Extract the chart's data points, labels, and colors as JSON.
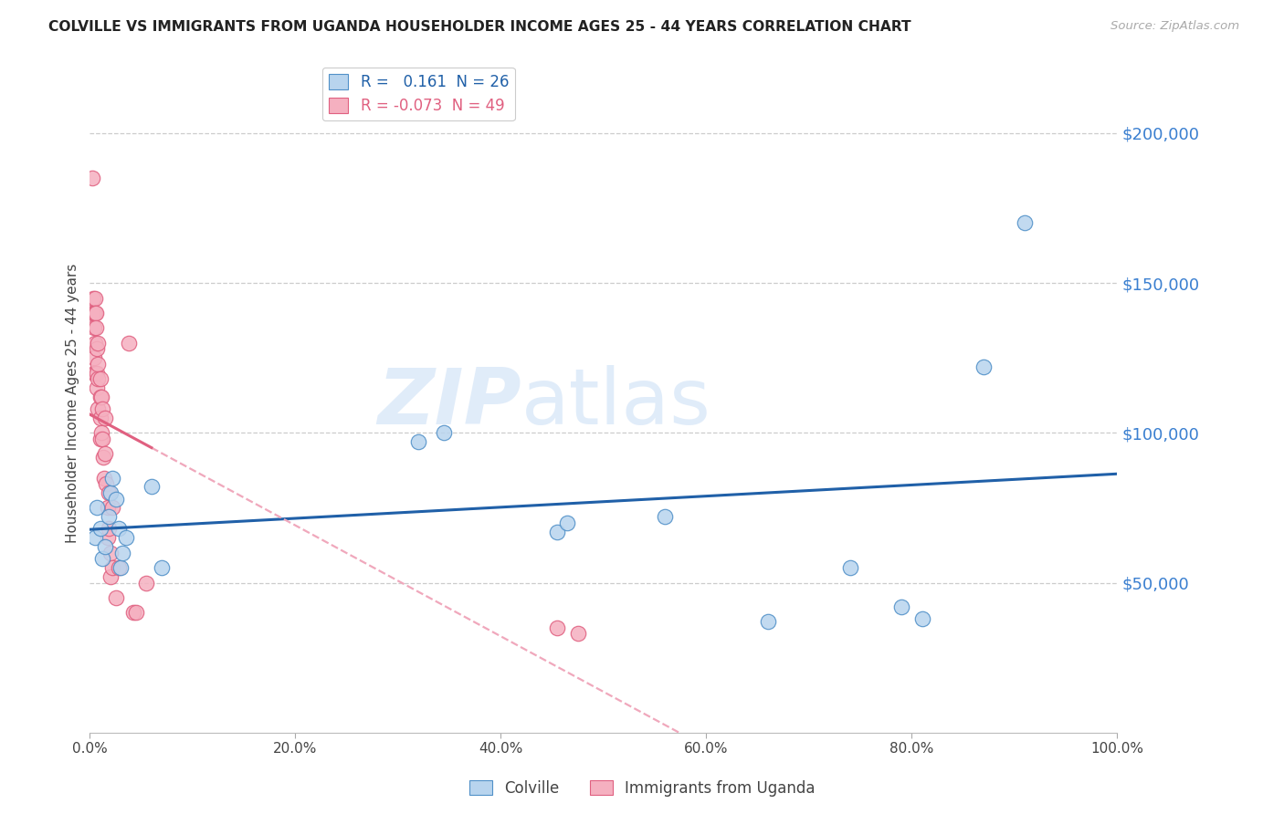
{
  "title": "COLVILLE VS IMMIGRANTS FROM UGANDA HOUSEHOLDER INCOME AGES 25 - 44 YEARS CORRELATION CHART",
  "source": "Source: ZipAtlas.com",
  "ylabel": "Householder Income Ages 25 - 44 years",
  "legend_colville": "Colville",
  "legend_uganda": "Immigrants from Uganda",
  "r_colville": "0.161",
  "n_colville": "26",
  "r_uganda": "-0.073",
  "n_uganda": "49",
  "colville_fill": "#b8d4ee",
  "colville_edge": "#5090c8",
  "uganda_fill": "#f5b0c0",
  "uganda_edge": "#e06080",
  "colville_line_color": "#2060a8",
  "uganda_solid_color": "#e06080",
  "uganda_dash_color": "#f0a8bc",
  "ytick_color": "#3a7fd0",
  "watermark_color": "#c8ddf5",
  "ylim": [
    0,
    220000
  ],
  "xlim": [
    0.0,
    1.0
  ],
  "yticks": [
    0,
    50000,
    100000,
    150000,
    200000
  ],
  "xticks": [
    0.0,
    0.2,
    0.4,
    0.6,
    0.8,
    1.0
  ],
  "colville_x": [
    0.005,
    0.007,
    0.01,
    0.012,
    0.015,
    0.018,
    0.02,
    0.022,
    0.025,
    0.028,
    0.03,
    0.032,
    0.035,
    0.06,
    0.07,
    0.32,
    0.345,
    0.455,
    0.465,
    0.56,
    0.66,
    0.74,
    0.79,
    0.81,
    0.87,
    0.91
  ],
  "colville_y": [
    65000,
    75000,
    68000,
    58000,
    62000,
    72000,
    80000,
    85000,
    78000,
    68000,
    55000,
    60000,
    65000,
    82000,
    55000,
    97000,
    100000,
    67000,
    70000,
    72000,
    37000,
    55000,
    42000,
    38000,
    122000,
    170000
  ],
  "uganda_x": [
    0.002,
    0.002,
    0.003,
    0.004,
    0.004,
    0.004,
    0.004,
    0.005,
    0.005,
    0.005,
    0.005,
    0.006,
    0.006,
    0.007,
    0.007,
    0.007,
    0.008,
    0.008,
    0.008,
    0.008,
    0.01,
    0.01,
    0.01,
    0.01,
    0.011,
    0.011,
    0.012,
    0.012,
    0.013,
    0.014,
    0.015,
    0.015,
    0.016,
    0.017,
    0.017,
    0.018,
    0.018,
    0.02,
    0.02,
    0.022,
    0.022,
    0.025,
    0.028,
    0.038,
    0.042,
    0.045,
    0.055,
    0.455,
    0.475
  ],
  "uganda_y": [
    185000,
    140000,
    145000,
    140000,
    135000,
    125000,
    120000,
    145000,
    140000,
    130000,
    120000,
    140000,
    135000,
    128000,
    120000,
    115000,
    130000,
    123000,
    118000,
    108000,
    118000,
    112000,
    105000,
    98000,
    112000,
    100000,
    108000,
    98000,
    92000,
    85000,
    105000,
    93000,
    83000,
    75000,
    65000,
    80000,
    68000,
    60000,
    52000,
    75000,
    55000,
    45000,
    55000,
    130000,
    40000,
    40000,
    50000,
    35000,
    33000
  ]
}
